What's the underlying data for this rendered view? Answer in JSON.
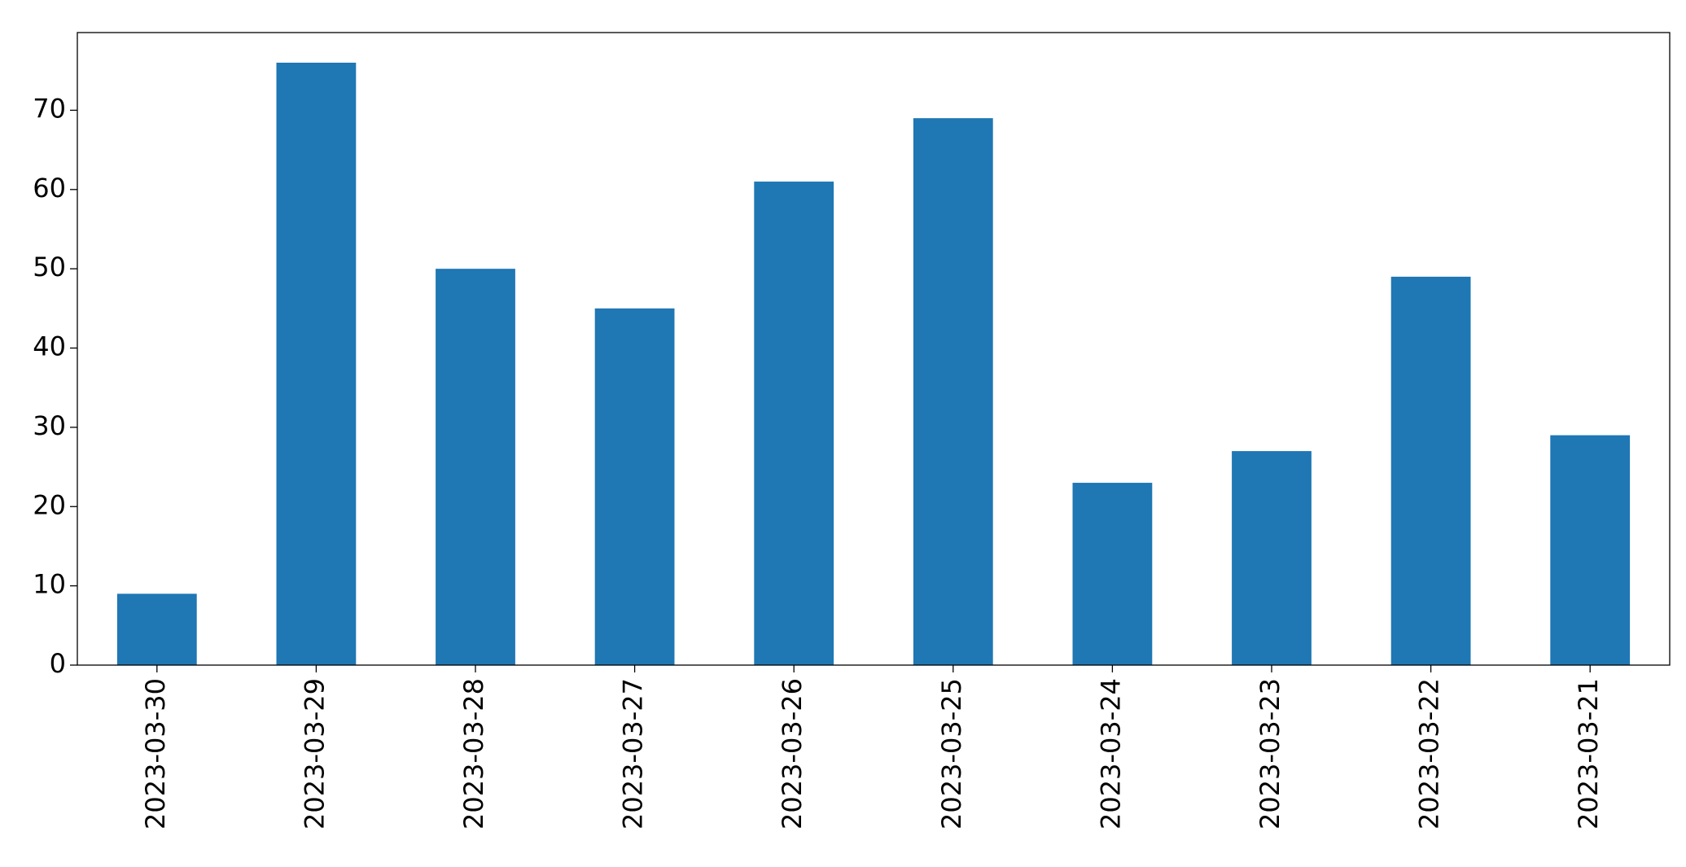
{
  "chart_data": {
    "type": "bar",
    "categories": [
      "2023-03-30",
      "2023-03-29",
      "2023-03-28",
      "2023-03-27",
      "2023-03-26",
      "2023-03-25",
      "2023-03-24",
      "2023-03-23",
      "2023-03-22",
      "2023-03-21"
    ],
    "values": [
      9,
      76,
      50,
      45,
      61,
      69,
      23,
      27,
      49,
      29
    ],
    "color": "#1f77b4",
    "ylim": [
      0,
      79.8
    ],
    "yticks": [
      0,
      10,
      20,
      30,
      40,
      50,
      60,
      70
    ],
    "grid": false
  }
}
